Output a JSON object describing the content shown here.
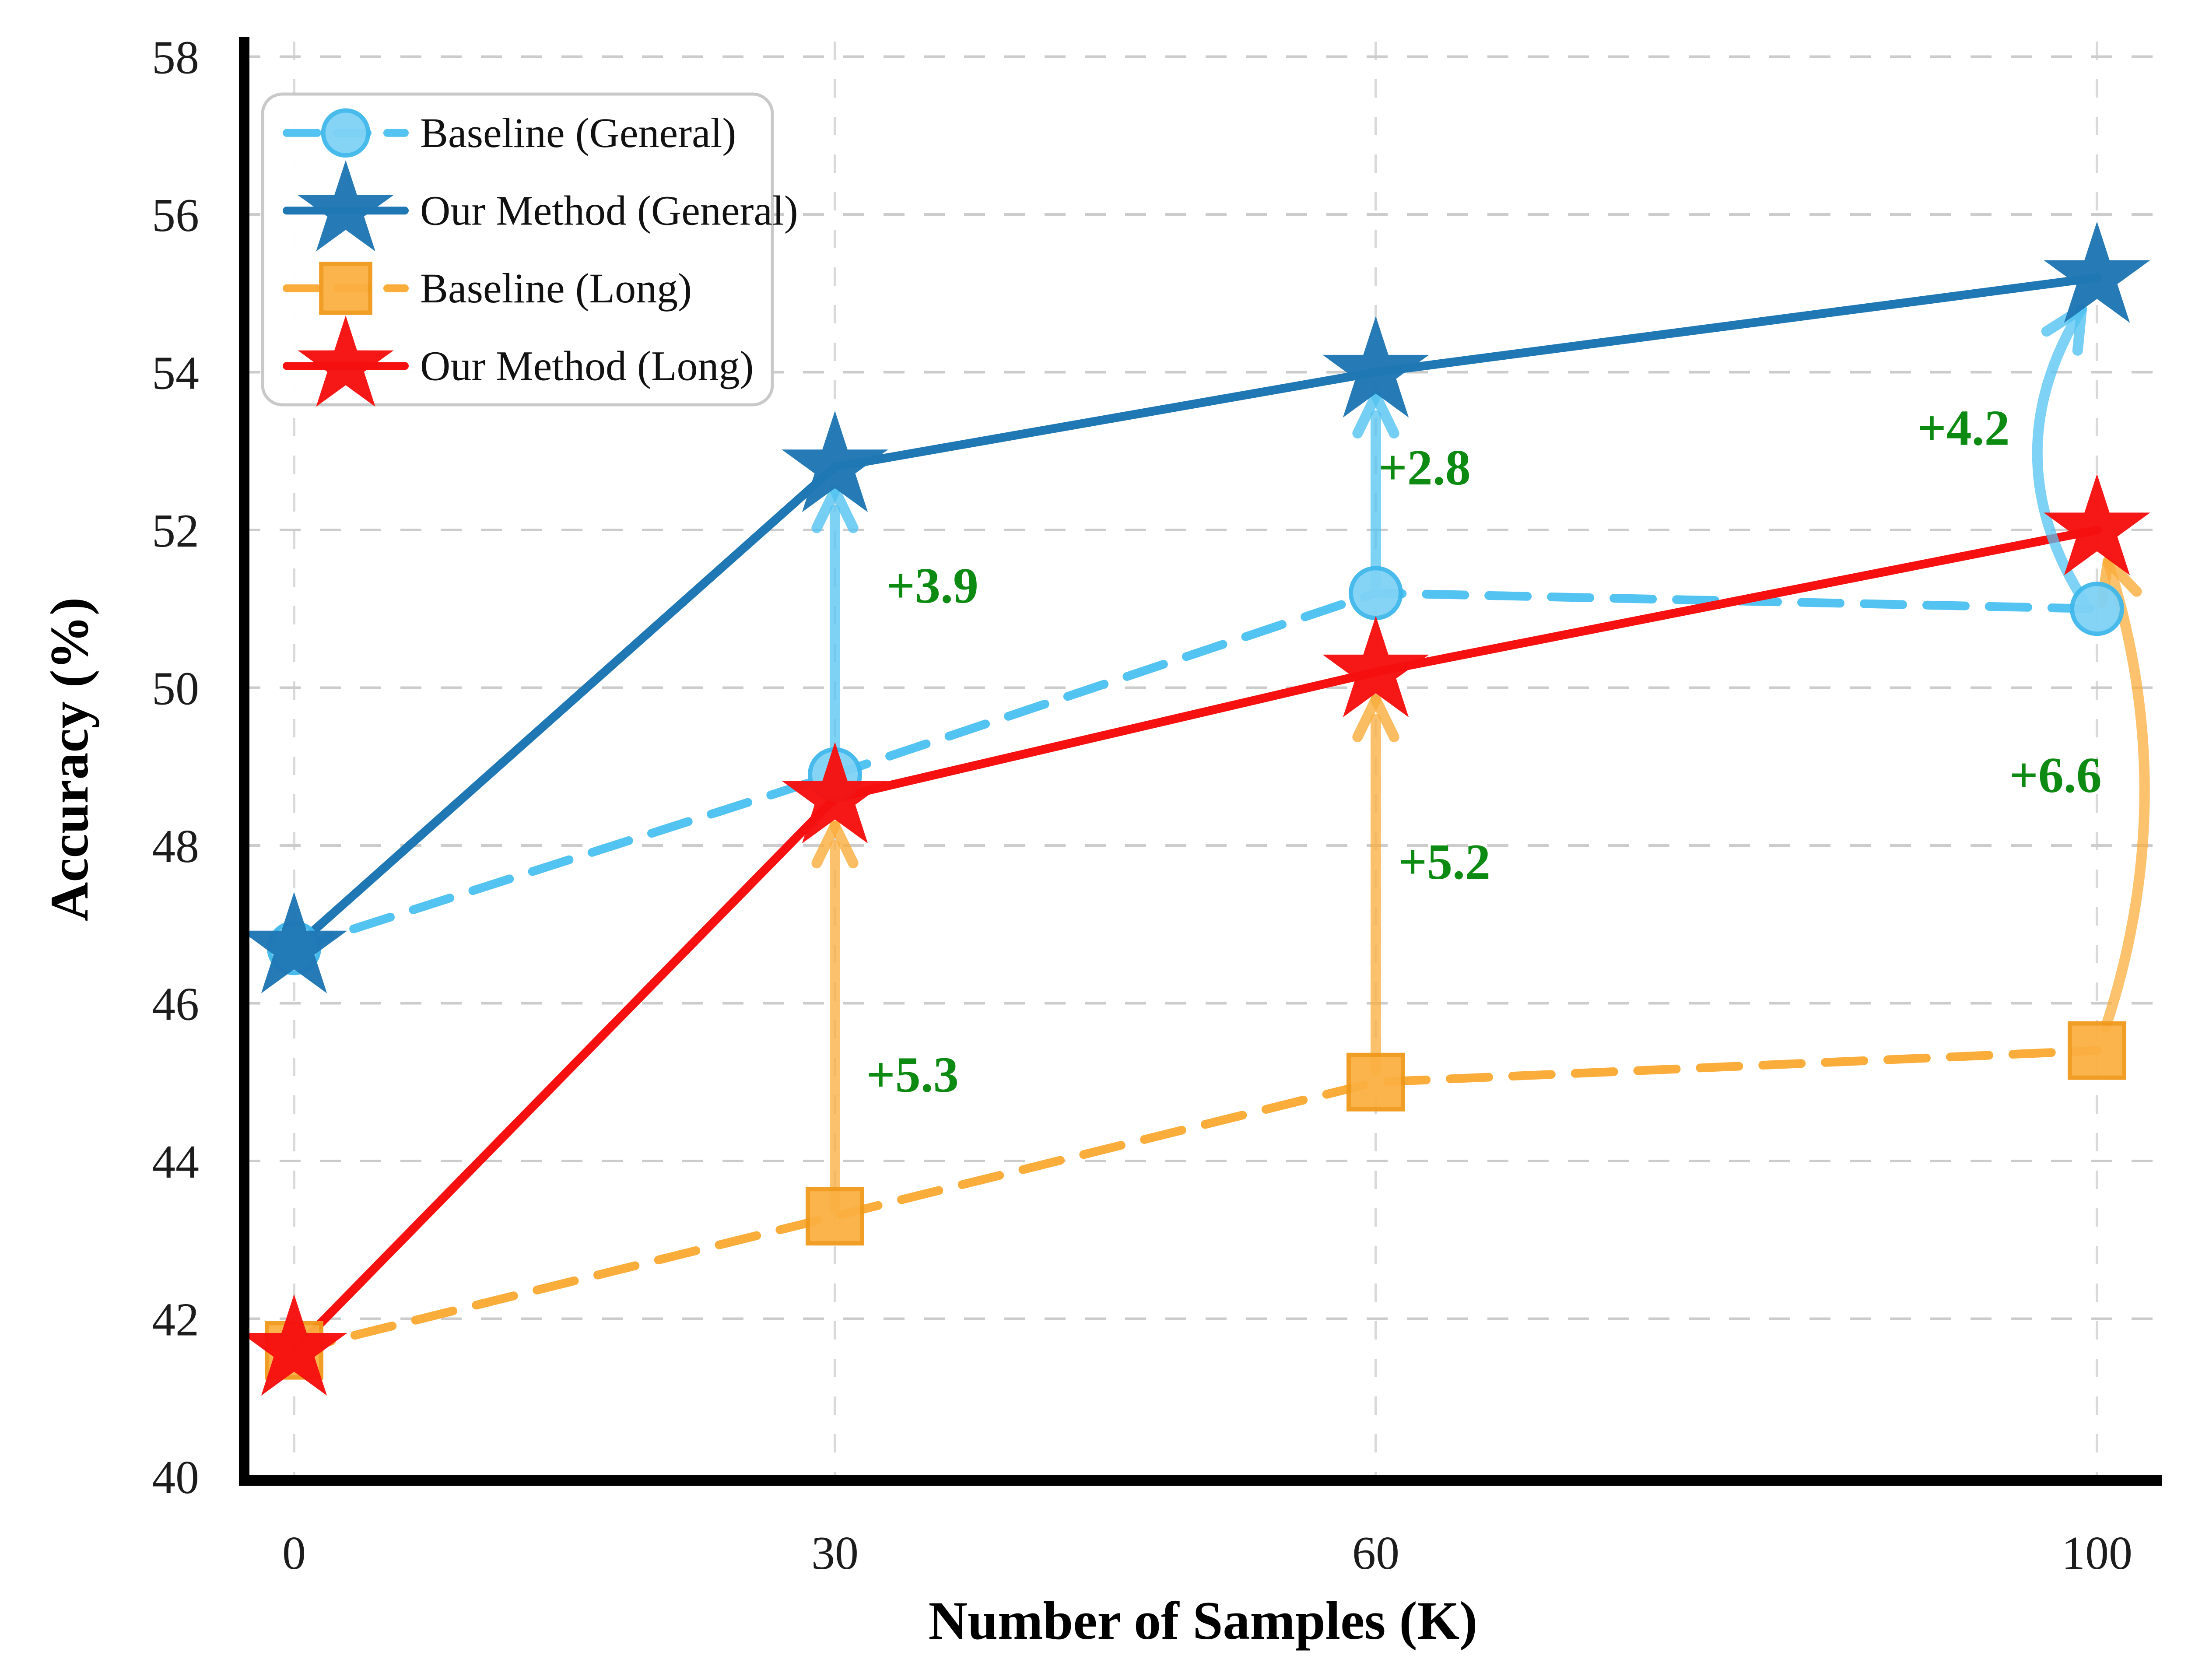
{
  "figure": {
    "background": "#ffffff",
    "grid_color": "#cccccc",
    "spine_color": "#000000",
    "tick_label_color": "#1c1c1c"
  },
  "chart_data": {
    "type": "line",
    "title": "",
    "xlabel": "Number of Samples (K)",
    "ylabel": "Accuracy (%)",
    "x": [
      0,
      30,
      60,
      100
    ],
    "xticks": [
      "0",
      "30",
      "60",
      "100"
    ],
    "ylim": [
      40,
      58
    ],
    "yticks": [
      40,
      42,
      44,
      46,
      48,
      50,
      52,
      54,
      56,
      58
    ],
    "grid": true,
    "legend_position": "upper-left",
    "series": [
      {
        "name": "Baseline (General)",
        "values": [
          46.7,
          48.9,
          51.2,
          51.0
        ],
        "color": "#53C3F1",
        "edge_color": "#35B0E4",
        "line": "dashed",
        "marker": "circle"
      },
      {
        "name": "Our Method (General)",
        "values": [
          46.7,
          52.8,
          54.0,
          55.2
        ],
        "color": "#1F77B4",
        "edge_color": "#1F77B4",
        "line": "solid",
        "marker": "star"
      },
      {
        "name": "Baseline (Long)",
        "values": [
          41.6,
          43.3,
          45.0,
          45.4
        ],
        "color": "#FBAD3C",
        "edge_color": "#F0991B",
        "line": "dashed",
        "marker": "square"
      },
      {
        "name": "Our Method (Long)",
        "values": [
          41.6,
          48.6,
          50.2,
          52.0
        ],
        "color": "#F61010",
        "edge_color": "#F61010",
        "line": "solid",
        "marker": "star"
      }
    ],
    "annotations": [
      {
        "text": "+3.9",
        "x": 35.4,
        "y": 51.3,
        "color": "#0C8A12"
      },
      {
        "text": "+5.3",
        "x": 34.3,
        "y": 45.1,
        "color": "#0C8A12"
      },
      {
        "text": "+2.8",
        "x": 62.7,
        "y": 52.8,
        "color": "#0C8A12"
      },
      {
        "text": "+5.2",
        "x": 63.8,
        "y": 47.8,
        "color": "#0C8A12"
      },
      {
        "text": "+4.2",
        "x": 92.6,
        "y": 53.3,
        "color": "#0C8A12"
      },
      {
        "text": "+6.6",
        "x": 97.7,
        "y": 48.9,
        "color": "#0C8A12"
      }
    ],
    "improvement_arrows": [
      {
        "x": 30,
        "from": 49.0,
        "to": 52.5,
        "color": "#53C3F1",
        "style": "straight"
      },
      {
        "x": 30,
        "from": 43.4,
        "to": 48.25,
        "color": "#FBAD3C",
        "style": "straight"
      },
      {
        "x": 60,
        "from": 51.3,
        "to": 53.7,
        "color": "#53C3F1",
        "style": "straight"
      },
      {
        "x": 60,
        "from": 45.15,
        "to": 49.85,
        "color": "#FBAD3C",
        "style": "straight"
      },
      {
        "x": 100,
        "from": 51.1,
        "to": 54.8,
        "color": "#53C3F1",
        "style": "curve-left"
      },
      {
        "x": 100,
        "from": 45.7,
        "to": 51.6,
        "color": "#FBAD3C",
        "style": "curve-right"
      }
    ]
  }
}
